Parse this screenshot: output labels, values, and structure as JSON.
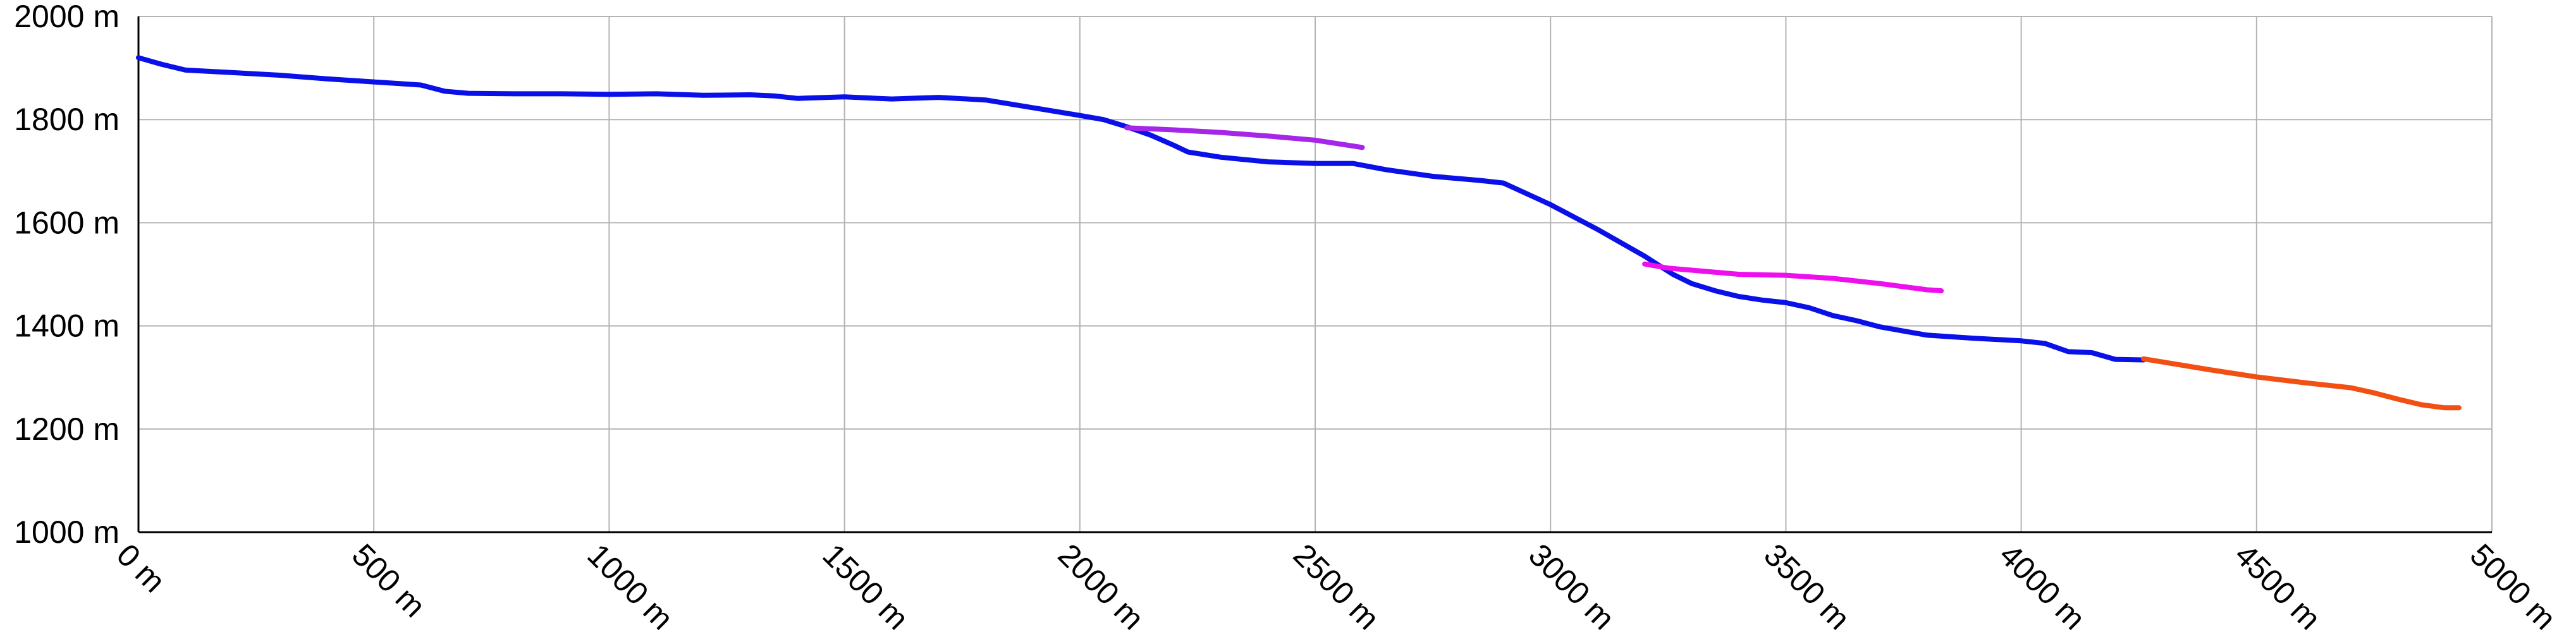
{
  "chart_data": {
    "type": "line",
    "title": "",
    "xlabel": "",
    "ylabel": "",
    "xlim": [
      0,
      5000
    ],
    "ylim": [
      1000,
      2000
    ],
    "grid": true,
    "x_ticks": [
      0,
      500,
      1000,
      1500,
      2000,
      2500,
      3000,
      3500,
      4000,
      4500,
      5000
    ],
    "x_tick_labels": [
      "0 m",
      "500 m",
      "1000 m",
      "1500 m",
      "2000 m",
      "2500 m",
      "3000 m",
      "3500 m",
      "4000 m",
      "4500 m",
      "5000 m"
    ],
    "y_ticks": [
      1000,
      1200,
      1400,
      1600,
      1800,
      2000
    ],
    "y_tick_labels": [
      "1000 m",
      "1200 m",
      "1400 m",
      "1600 m",
      "1800 m",
      "2000 m"
    ],
    "series": [
      {
        "color": "#0a10e8",
        "points": [
          [
            0,
            1920
          ],
          [
            50,
            1907
          ],
          [
            100,
            1896
          ],
          [
            200,
            1891
          ],
          [
            300,
            1886
          ],
          [
            400,
            1879
          ],
          [
            500,
            1873
          ],
          [
            600,
            1867
          ],
          [
            650,
            1855
          ],
          [
            700,
            1851
          ],
          [
            800,
            1850
          ],
          [
            900,
            1850
          ],
          [
            1000,
            1849
          ],
          [
            1100,
            1850
          ],
          [
            1200,
            1847
          ],
          [
            1300,
            1848
          ],
          [
            1350,
            1846
          ],
          [
            1400,
            1841
          ],
          [
            1500,
            1844
          ],
          [
            1600,
            1840
          ],
          [
            1700,
            1843
          ],
          [
            1800,
            1838
          ],
          [
            1900,
            1823
          ],
          [
            2000,
            1808
          ],
          [
            2050,
            1800
          ],
          [
            2100,
            1786
          ],
          [
            2150,
            1770
          ],
          [
            2200,
            1750
          ],
          [
            2230,
            1737
          ],
          [
            2300,
            1727
          ],
          [
            2400,
            1718
          ],
          [
            2500,
            1715
          ],
          [
            2580,
            1715
          ],
          [
            2650,
            1703
          ],
          [
            2750,
            1690
          ],
          [
            2850,
            1682
          ],
          [
            2900,
            1677
          ],
          [
            3000,
            1635
          ],
          [
            3100,
            1587
          ],
          [
            3200,
            1535
          ],
          [
            3260,
            1500
          ],
          [
            3300,
            1482
          ],
          [
            3350,
            1468
          ],
          [
            3400,
            1457
          ],
          [
            3450,
            1450
          ],
          [
            3500,
            1445
          ],
          [
            3550,
            1435
          ],
          [
            3600,
            1420
          ],
          [
            3650,
            1410
          ],
          [
            3700,
            1398
          ],
          [
            3750,
            1390
          ],
          [
            3800,
            1382
          ],
          [
            3900,
            1376
          ],
          [
            4000,
            1371
          ],
          [
            4050,
            1366
          ],
          [
            4100,
            1350
          ],
          [
            4150,
            1348
          ],
          [
            4200,
            1335
          ],
          [
            4260,
            1334
          ]
        ]
      },
      {
        "color": "#a526e8",
        "points": [
          [
            2100,
            1784
          ],
          [
            2200,
            1780
          ],
          [
            2300,
            1775
          ],
          [
            2400,
            1768
          ],
          [
            2500,
            1760
          ],
          [
            2600,
            1746
          ]
        ]
      },
      {
        "color": "#ee0fee",
        "points": [
          [
            3200,
            1520
          ],
          [
            3250,
            1512
          ],
          [
            3300,
            1508
          ],
          [
            3400,
            1500
          ],
          [
            3500,
            1498
          ],
          [
            3600,
            1492
          ],
          [
            3700,
            1482
          ],
          [
            3800,
            1470
          ],
          [
            3830,
            1468
          ]
        ]
      },
      {
        "color": "#f24f12",
        "points": [
          [
            4260,
            1336
          ],
          [
            4300,
            1330
          ],
          [
            4400,
            1315
          ],
          [
            4500,
            1301
          ],
          [
            4600,
            1290
          ],
          [
            4700,
            1280
          ],
          [
            4750,
            1270
          ],
          [
            4800,
            1258
          ],
          [
            4850,
            1247
          ],
          [
            4900,
            1241
          ],
          [
            4930,
            1241
          ]
        ]
      }
    ]
  },
  "colors": {
    "background": "#ffffff",
    "grid": "#b3b3b3",
    "axis": "#000000"
  }
}
